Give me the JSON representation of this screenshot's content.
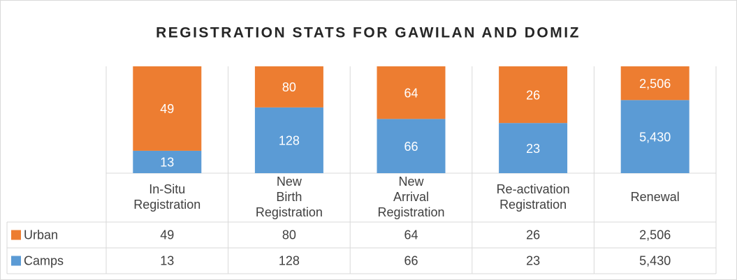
{
  "chart_data": {
    "type": "bar",
    "stacking": "percent",
    "title": "REGISTRATION STATS FOR GAWILAN AND DOMIZ",
    "categories": [
      "In-Situ Registration",
      "New Birth Registration",
      "New Arrival Registration",
      "Re-activation Registration",
      "Renewal"
    ],
    "series": [
      {
        "name": "Camps",
        "color": "#5b9bd5",
        "values": [
          13,
          128,
          66,
          23,
          5430
        ],
        "value_labels": [
          "13",
          "128",
          "66",
          "23",
          "5,430"
        ]
      },
      {
        "name": "Urban",
        "color": "#ed7d31",
        "values": [
          49,
          80,
          64,
          26,
          2506
        ],
        "value_labels": [
          "49",
          "80",
          "64",
          "26",
          "2,506"
        ]
      }
    ],
    "data_table": true,
    "grid": true
  }
}
